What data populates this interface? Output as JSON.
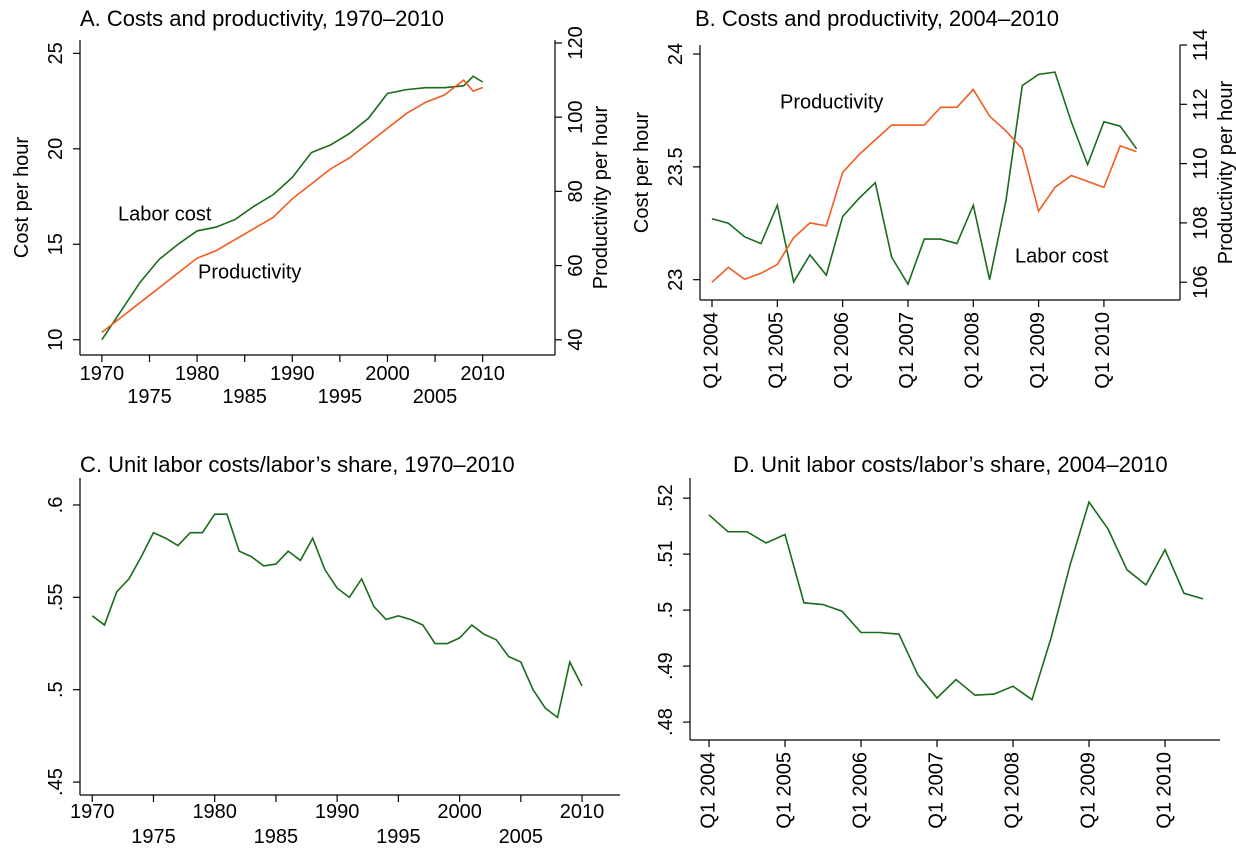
{
  "chart_data": [
    {
      "type": "line",
      "title": "A. Costs and productivity, 1970–2010",
      "x": [
        1970,
        1972,
        1974,
        1976,
        1978,
        1980,
        1982,
        1984,
        1986,
        1988,
        1990,
        1992,
        1994,
        1996,
        1998,
        2000,
        2002,
        2004,
        2006,
        2008,
        2009,
        2010
      ],
      "series": [
        {
          "name": "Labor cost",
          "color": "#1a6b1a",
          "axis": "y",
          "values": [
            10.0,
            11.5,
            13.0,
            14.2,
            15.0,
            15.7,
            15.9,
            16.3,
            17.0,
            17.6,
            18.5,
            19.8,
            20.2,
            20.8,
            21.6,
            22.9,
            23.1,
            23.2,
            23.2,
            23.3,
            23.8,
            23.5
          ]
        },
        {
          "name": "Productivity",
          "color": "#f25c1f",
          "axis": "y2",
          "values": [
            42,
            46,
            50,
            54,
            58,
            62,
            64,
            67,
            70,
            73,
            78,
            82,
            86,
            89,
            93,
            97,
            101,
            104,
            106,
            110,
            107,
            108
          ]
        }
      ],
      "xlim": [
        1967.7,
        2017.6
      ],
      "xticks": [
        1970,
        1975,
        1980,
        1985,
        1990,
        1995,
        2000,
        2005,
        2010
      ],
      "ylim": [
        9.2,
        25.7
      ],
      "yticks": [
        10,
        15,
        20,
        25
      ],
      "ylabel": "Cost per hour",
      "y2lim": [
        35.9,
        120.8
      ],
      "y2ticks": [
        40,
        60,
        80,
        100,
        120
      ],
      "y2label": "Productivity per hour"
    },
    {
      "type": "line",
      "title": "B. Costs and productivity, 2004–2010",
      "categories": [
        "Q1 2004",
        null,
        null,
        null,
        "Q1 2005",
        null,
        null,
        null,
        "Q1 2006",
        null,
        null,
        null,
        "Q1 2007",
        null,
        null,
        null,
        "Q1 2008",
        null,
        null,
        null,
        "Q1 2009",
        null,
        null,
        null,
        "Q1 2010",
        null,
        null
      ],
      "series": [
        {
          "name": "Labor cost",
          "color": "#1a6b1a",
          "axis": "y",
          "values": [
            23.27,
            23.25,
            23.19,
            23.16,
            23.33,
            22.99,
            23.11,
            23.02,
            23.28,
            23.36,
            23.43,
            23.1,
            22.98,
            23.18,
            23.18,
            23.16,
            23.33,
            23.0,
            23.35,
            23.86,
            23.91,
            23.92,
            23.7,
            23.51,
            23.7,
            23.68,
            23.58
          ]
        },
        {
          "name": "Productivity",
          "color": "#f25c1f",
          "axis": "y2",
          "values": [
            106.0,
            106.5,
            106.1,
            106.3,
            106.6,
            107.5,
            108.0,
            107.9,
            109.7,
            110.3,
            110.8,
            111.3,
            111.3,
            111.3,
            111.9,
            111.9,
            112.5,
            111.6,
            111.1,
            110.5,
            108.4,
            109.2,
            109.6,
            109.4,
            109.2,
            110.6,
            110.4
          ]
        }
      ],
      "ylim": [
        22.91,
        24.04
      ],
      "yticks": [
        23,
        23.5,
        24
      ],
      "ylabel": "Cost per hour",
      "y2lim": [
        105.4,
        114.0
      ],
      "y2ticks": [
        106,
        108,
        110,
        112,
        114
      ],
      "y2label": "Productivity per hour"
    },
    {
      "type": "line",
      "title": "C. Unit labor costs/labor’s share, 1970–2010",
      "x": [
        1970,
        1971,
        1972,
        1973,
        1974,
        1975,
        1976,
        1977,
        1978,
        1979,
        1980,
        1981,
        1982,
        1983,
        1984,
        1985,
        1986,
        1987,
        1988,
        1989,
        1990,
        1991,
        1992,
        1993,
        1994,
        1995,
        1996,
        1997,
        1998,
        1999,
        2000,
        2001,
        2002,
        2003,
        2004,
        2005,
        2006,
        2007,
        2008,
        2009,
        2010
      ],
      "series": [
        {
          "name": "Unit labor costs/labor’s share",
          "color": "#1a6b1a",
          "axis": "y",
          "values": [
            0.54,
            0.535,
            0.553,
            0.56,
            0.572,
            0.585,
            0.582,
            0.578,
            0.585,
            0.585,
            0.595,
            0.595,
            0.575,
            0.572,
            0.567,
            0.568,
            0.575,
            0.57,
            0.582,
            0.565,
            0.555,
            0.55,
            0.56,
            0.545,
            0.538,
            0.54,
            0.538,
            0.535,
            0.525,
            0.525,
            0.528,
            0.535,
            0.53,
            0.527,
            0.518,
            0.515,
            0.5,
            0.49,
            0.485,
            0.515,
            0.502
          ]
        }
      ],
      "xlim": [
        1969.0,
        2013.1
      ],
      "xticks": [
        1970,
        1975,
        1980,
        1985,
        1990,
        1995,
        2000,
        2005,
        2010
      ],
      "ylim": [
        0.443,
        0.6146
      ],
      "yticks": [
        {
          "value": 0.45,
          "label": ".45"
        },
        {
          "value": 0.5,
          "label": ".5"
        },
        {
          "value": 0.55,
          "label": ".55"
        },
        {
          "value": 0.6,
          "label": ".6"
        }
      ]
    },
    {
      "type": "line",
      "title": "D. Unit labor costs/labor’s share, 2004–2010",
      "categories": [
        "Q1 2004",
        null,
        null,
        null,
        "Q1 2005",
        null,
        null,
        null,
        "Q1 2006",
        null,
        null,
        null,
        "Q1 2007",
        null,
        null,
        null,
        "Q1 2008",
        null,
        null,
        null,
        "Q1 2009",
        null,
        null,
        null,
        "Q1 2010",
        null,
        null
      ],
      "series": [
        {
          "name": "Unit labor costs/labor’s share",
          "color": "#1a6b1a",
          "axis": "y",
          "values": [
            0.517,
            0.514,
            0.514,
            0.512,
            0.5135,
            0.5013,
            0.501,
            0.4998,
            0.496,
            0.496,
            0.4957,
            0.4884,
            0.4843,
            0.4876,
            0.4848,
            0.485,
            0.4864,
            0.484,
            0.495,
            0.508,
            0.5193,
            0.5145,
            0.5072,
            0.5045,
            0.5108,
            0.503,
            0.502
          ]
        }
      ],
      "ylim": [
        0.4768,
        0.5236
      ],
      "yticks": [
        {
          "value": 0.48,
          "label": ".48"
        },
        {
          "value": 0.49,
          "label": ".49"
        },
        {
          "value": 0.5,
          "label": ".5"
        },
        {
          "value": 0.51,
          "label": ".51"
        },
        {
          "value": 0.52,
          "label": ".52"
        }
      ]
    }
  ]
}
